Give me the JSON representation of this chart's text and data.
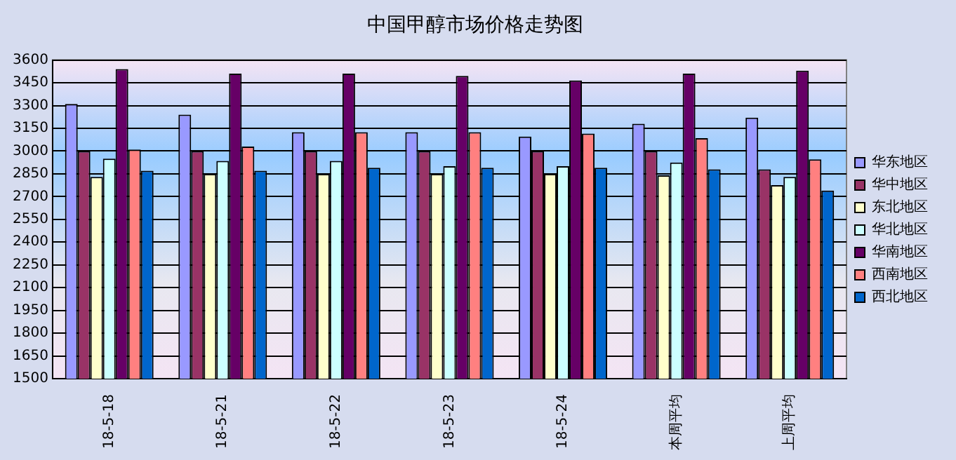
{
  "chart_data": {
    "type": "bar",
    "title": "中国甲醇市场价格走势图",
    "categories": [
      "18-5-18",
      "18-5-21",
      "18-5-22",
      "18-5-23",
      "18-5-24",
      "本周平均",
      "上周平均"
    ],
    "series": [
      {
        "name": "华东地区",
        "color": "#9999ff",
        "values": [
          3310,
          3240,
          3125,
          3125,
          3095,
          3180,
          3220
        ]
      },
      {
        "name": "华中地区",
        "color": "#993366",
        "values": [
          3000,
          3000,
          3000,
          3000,
          3000,
          3000,
          2880
        ]
      },
      {
        "name": "东北地区",
        "color": "#ffffcc",
        "values": [
          2830,
          2850,
          2850,
          2850,
          2850,
          2840,
          2775
        ]
      },
      {
        "name": "华北地区",
        "color": "#ccffff",
        "values": [
          2950,
          2935,
          2935,
          2900,
          2900,
          2925,
          2830
        ]
      },
      {
        "name": "华南地区",
        "color": "#660066",
        "values": [
          3540,
          3510,
          3510,
          3495,
          3465,
          3510,
          3530
        ]
      },
      {
        "name": "西南地区",
        "color": "#ff8080",
        "values": [
          3010,
          3030,
          3125,
          3125,
          3115,
          3085,
          2945
        ]
      },
      {
        "name": "西北地区",
        "color": "#0066cc",
        "values": [
          2870,
          2870,
          2890,
          2890,
          2890,
          2880,
          2740
        ]
      }
    ],
    "ylim": [
      1500,
      3600
    ],
    "yticks": [
      1500,
      1650,
      1800,
      1950,
      2100,
      2250,
      2400,
      2550,
      2700,
      2850,
      3000,
      3150,
      3300,
      3450,
      3600
    ],
    "grid": "y",
    "legend": "right"
  }
}
